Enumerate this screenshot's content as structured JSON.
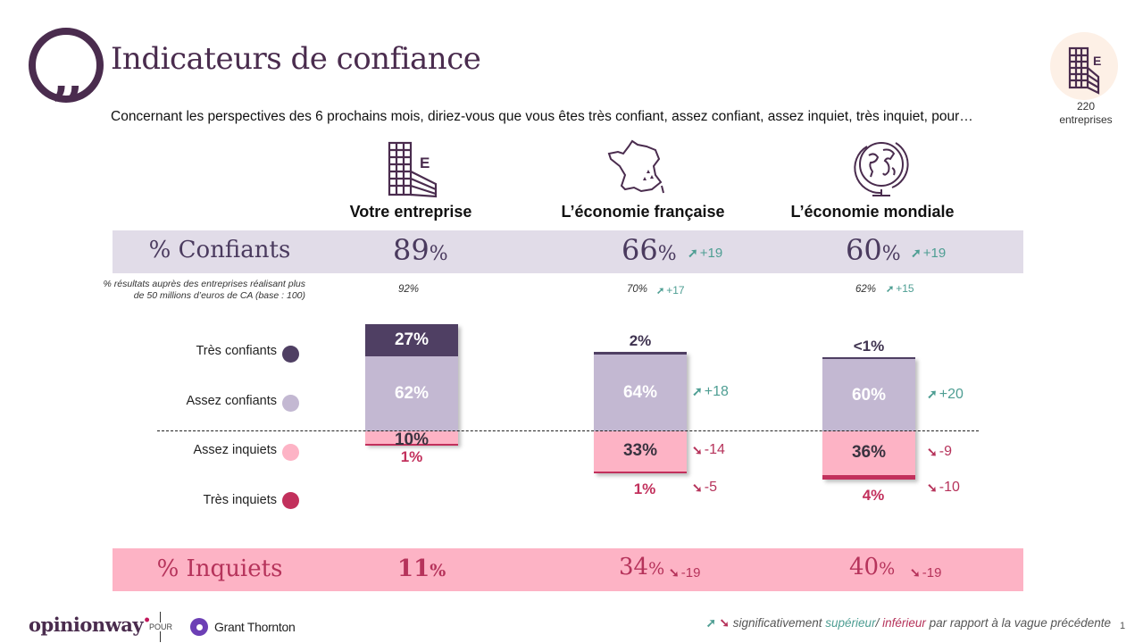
{
  "header": {
    "icon": "quote-icon",
    "title": "Indicateurs de confiance",
    "question": "Concernant les perspectives des 6 prochains mois, diriez-vous que vous êtes très confiant, assez confiant, assez inquiet, très inquiet, pour…"
  },
  "sample": {
    "icon": "building-icon",
    "count": "220",
    "unit": "entreprises"
  },
  "colors": {
    "tres_confiants": "#4f3f63",
    "assez_confiants": "#c3b8d2",
    "assez_inquiets": "#fdb3c5",
    "tres_inquiets": "#c2305c",
    "band_confiants": "#e1dce8",
    "band_inquiets": "#fdb3c5",
    "up": "#4e9e93",
    "down": "#b6335b"
  },
  "columns": [
    {
      "icon": "building-icon",
      "title": "Votre entreprise"
    },
    {
      "icon": "france-map-icon",
      "title": "L’économie française"
    },
    {
      "icon": "globe-icon",
      "title": "L’économie mondiale"
    }
  ],
  "confiants": {
    "label": "% Confiants",
    "values": [
      {
        "value": "89",
        "pct": "%",
        "delta": ""
      },
      {
        "value": "66",
        "pct": "%",
        "delta": "+19"
      },
      {
        "value": "60",
        "pct": "%",
        "delta": "+19"
      }
    ]
  },
  "sub_base": {
    "note": "% résultats auprès des entreprises réalisant plus de 50 millions d’euros de CA (base : 100)",
    "values": [
      {
        "value": "92%",
        "delta": ""
      },
      {
        "value": "70%",
        "delta": "+17"
      },
      {
        "value": "62%",
        "delta": "+15"
      }
    ]
  },
  "inquiets": {
    "label": "% Inquiets",
    "values": [
      {
        "value": "11",
        "pct": "%",
        "delta": ""
      },
      {
        "value": "34",
        "pct": "%",
        "delta": "-19"
      },
      {
        "value": "40",
        "pct": "%",
        "delta": "-19"
      }
    ]
  },
  "chart_data": {
    "type": "bar",
    "stacked": true,
    "title": "Indicateurs de confiance",
    "categories": [
      "Votre entreprise",
      "L’économie française",
      "L’économie mondiale"
    ],
    "series": [
      {
        "name": "Très confiants",
        "values": [
          27,
          2,
          0.5
        ],
        "labels": [
          "27%",
          "2%",
          "<1%"
        ],
        "deltas": [
          "",
          "",
          ""
        ]
      },
      {
        "name": "Assez confiants",
        "values": [
          62,
          64,
          60
        ],
        "labels": [
          "62%",
          "64%",
          "60%"
        ],
        "deltas": [
          "",
          "+18",
          "+20"
        ]
      },
      {
        "name": "Assez inquiets",
        "values": [
          10,
          33,
          36
        ],
        "labels": [
          "10%",
          "33%",
          "36%"
        ],
        "deltas": [
          "",
          "-14",
          "-9"
        ]
      },
      {
        "name": "Très inquiets",
        "values": [
          1,
          1,
          4
        ],
        "labels": [
          "1%",
          "1%",
          "4%"
        ],
        "deltas": [
          "",
          "-5",
          "-10"
        ]
      }
    ],
    "divider": "between confident and worried",
    "ylim": [
      0,
      100
    ],
    "legend_position": "left"
  },
  "footer": {
    "brand": "opinionway",
    "pour": "POUR",
    "client": "Grant Thornton",
    "footnote_pre": "significativement ",
    "footnote_sup": "supérieur",
    "footnote_sep": "/ ",
    "footnote_inf": "inférieur",
    "footnote_post": " par rapport à la vague précédente",
    "page_number": "1"
  }
}
